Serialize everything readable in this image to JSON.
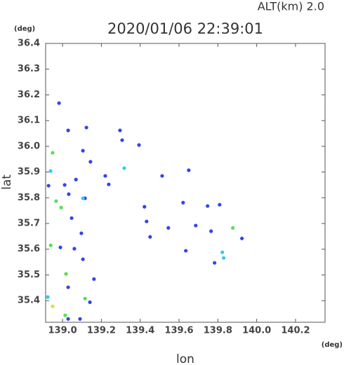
{
  "chart_data": {
    "type": "scatter",
    "title": "2020/01/06 22:39:01",
    "subtitle": "ALT(km) 2.0",
    "y_unit": "(deg)",
    "x_unit": "(deg)",
    "x_label": "lon",
    "y_label": "lat",
    "xlim": [
      138.913,
      140.352
    ],
    "ylim": [
      35.316,
      36.4
    ],
    "xticks": [
      {
        "value": 139.0,
        "label": "139.0"
      },
      139.2,
      139.4,
      139.6,
      139.8,
      {
        "value": 140.0,
        "label": "140.0"
      },
      140.2
    ],
    "yticks": [
      36.4,
      36.3,
      36.2,
      36.1,
      {
        "value": 36.0,
        "label": "36.0"
      },
      35.9,
      35.8,
      35.7,
      35.6,
      35.5,
      35.4
    ],
    "series": [
      {
        "color": "#3344ee",
        "x": [
          138.982,
          139.029,
          139.123,
          139.296,
          139.307,
          139.394,
          139.105,
          139.144,
          138.928,
          139.011,
          139.069,
          139.22,
          139.238,
          139.513,
          139.65,
          139.032,
          139.422,
          139.621,
          139.747,
          139.809,
          139.433,
          139.047,
          139.545,
          139.686,
          139.765,
          139.924,
          139.451,
          139.097,
          138.989,
          139.061,
          139.105,
          139.635,
          139.783,
          139.162,
          139.029,
          139.141,
          139.09,
          139.029,
          139.116
        ],
        "y": [
          36.168,
          36.062,
          36.073,
          36.062,
          36.024,
          36.005,
          35.983,
          35.94,
          35.847,
          35.85,
          35.871,
          35.885,
          35.852,
          35.885,
          35.907,
          35.814,
          35.765,
          35.781,
          35.768,
          35.773,
          35.708,
          35.721,
          35.683,
          35.692,
          35.67,
          35.642,
          35.648,
          35.662,
          35.607,
          35.602,
          35.561,
          35.594,
          35.547,
          35.484,
          35.452,
          35.394,
          35.329,
          35.329,
          35.798
        ]
      },
      {
        "color": "#33ccee",
        "x": [
          138.939,
          139.318,
          139.105,
          139.823,
          139.83,
          138.924
        ],
        "y": [
          35.904,
          35.915,
          35.798,
          35.588,
          35.566,
          35.414
        ]
      },
      {
        "color": "#55e055",
        "x": [
          138.949,
          138.967,
          138.993,
          139.877,
          138.939,
          139.018,
          139.116,
          139.014
        ],
        "y": [
          35.975,
          35.787,
          35.762,
          35.683,
          35.615,
          35.504,
          35.408,
          35.343
        ]
      },
      {
        "color": "#c8ee33",
        "x": [
          138.949
        ],
        "y": [
          35.378
        ]
      }
    ]
  }
}
